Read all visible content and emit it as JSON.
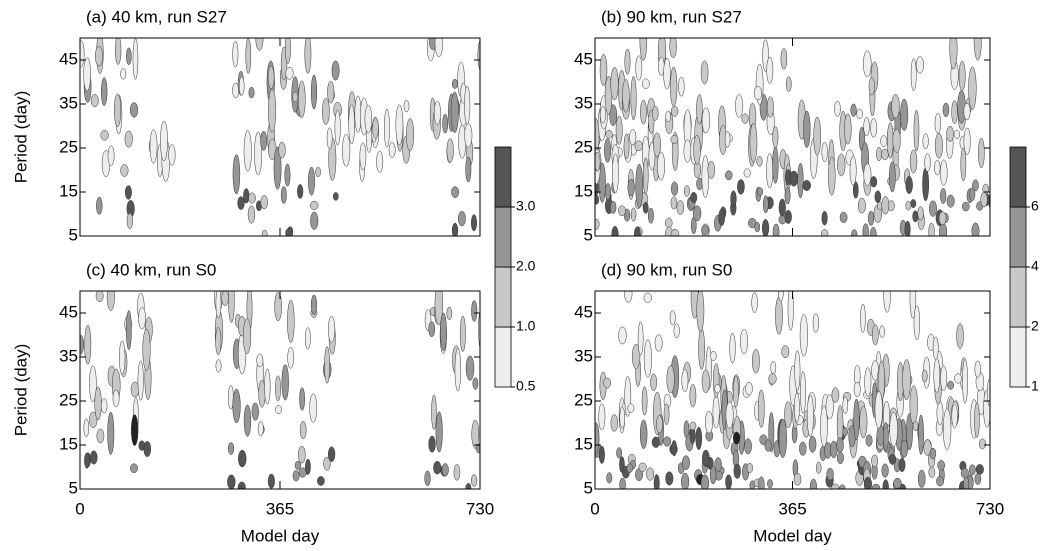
{
  "chart_data": [
    {
      "type": "contour",
      "title": "(a)  40 km, run S27",
      "ylabel": "Period (day)",
      "xlim": [
        0,
        730
      ],
      "xticks": [
        0,
        365,
        730
      ],
      "show_xtick_labels": false,
      "ylim": [
        5,
        50
      ],
      "yticks": [
        5,
        15,
        25,
        35,
        45
      ],
      "colorbar": {
        "levels": [
          0.5,
          {
            "value": 1,
            "label": "1.0"
          },
          {
            "value": 2,
            "label": "2.0"
          },
          {
            "value": 3,
            "label": "3.0"
          }
        ],
        "colors": [
          "#eeeeee",
          "#c8c8c8",
          "#969696",
          "#555555"
        ]
      }
    },
    {
      "type": "contour",
      "title": "(b)  90 km, run S27",
      "xlim": [
        0,
        730
      ],
      "xticks": [
        0,
        365,
        730
      ],
      "show_xtick_labels": false,
      "ylim": [
        5,
        50
      ],
      "yticks": [
        5,
        15,
        25,
        35,
        45
      ],
      "colorbar": {
        "levels": [
          1,
          2,
          4,
          6
        ],
        "colors": [
          "#eeeeee",
          "#c8c8c8",
          "#969696",
          "#555555"
        ]
      }
    },
    {
      "type": "contour",
      "title": "(c)  40 km, run S0",
      "ylabel": "Period (day)",
      "xlabel": "Model day",
      "xlim": [
        0,
        730
      ],
      "xticks": [
        0,
        365,
        730
      ],
      "show_xtick_labels": true,
      "ylim": [
        5,
        50
      ],
      "yticks": [
        5,
        15,
        25,
        35,
        45
      ]
    },
    {
      "type": "contour",
      "title": "(d)  90 km, run S0",
      "xlabel": "Model day",
      "xlim": [
        0,
        730
      ],
      "xticks": [
        0,
        365,
        730
      ],
      "show_xtick_labels": true,
      "ylim": [
        5,
        50
      ],
      "yticks": [
        5,
        15,
        25,
        35,
        45
      ]
    }
  ]
}
